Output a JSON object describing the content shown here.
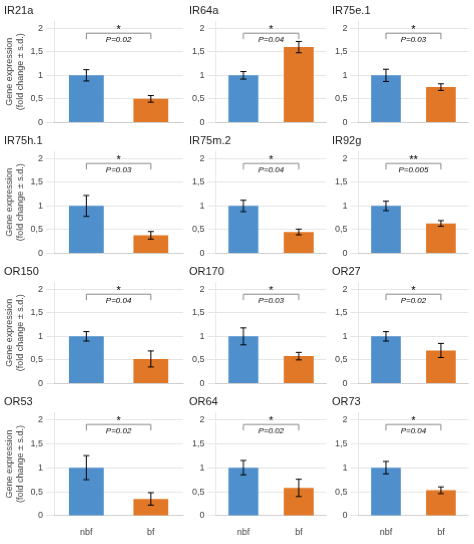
{
  "chart_data": [
    {
      "type": "bar",
      "title": "IR21a",
      "categories": [
        "nbf",
        "bf"
      ],
      "values": [
        1.0,
        0.5
      ],
      "errors": [
        0.12,
        0.07
      ],
      "colors": [
        "#4E8FCC",
        "#E07828"
      ],
      "annotations": [
        "*",
        "P=0.02"
      ],
      "ylabel": "Gene expression\n(fold change ± s.d.)",
      "ylim": [
        0,
        2.15
      ],
      "yticks": [
        0,
        {
          "value": 0.5,
          "label": "0,5"
        },
        1,
        {
          "value": 1.5,
          "label": "1,5"
        },
        2
      ],
      "grid": "y",
      "tick_labels": "y"
    },
    {
      "type": "bar",
      "title": "IR64a",
      "categories": [
        "nbf",
        "bf"
      ],
      "values": [
        1.0,
        1.6
      ],
      "errors": [
        0.08,
        0.12
      ],
      "colors": [
        "#4E8FCC",
        "#E07828"
      ],
      "annotations": [
        "*",
        "P=0.04"
      ],
      "ylim": [
        0,
        2.15
      ],
      "yticks": [
        0,
        {
          "value": 0.5,
          "label": "0,5"
        },
        1,
        {
          "value": 1.5,
          "label": "1,5"
        },
        2
      ],
      "grid": "y",
      "tick_labels": "y"
    },
    {
      "type": "bar",
      "title": "IR75e.1",
      "categories": [
        "nbf",
        "bf"
      ],
      "values": [
        1.0,
        0.75
      ],
      "errors": [
        0.13,
        0.07
      ],
      "colors": [
        "#4E8FCC",
        "#E07828"
      ],
      "annotations": [
        "*",
        "P=0.03"
      ],
      "ylim": [
        0,
        2.15
      ],
      "yticks": [
        0,
        {
          "value": 0.5,
          "label": "0,5"
        },
        1,
        {
          "value": 1.5,
          "label": "1,5"
        },
        2
      ],
      "grid": "y",
      "tick_labels": "y"
    },
    {
      "type": "bar",
      "title": "IR75h.1",
      "categories": [
        "nbf",
        "bf"
      ],
      "values": [
        1.0,
        0.38
      ],
      "errors": [
        0.22,
        0.08
      ],
      "colors": [
        "#4E8FCC",
        "#E07828"
      ],
      "annotations": [
        "*",
        "P=0.03"
      ],
      "ylabel": "Gene expression\n(fold change ± s.d.)",
      "ylim": [
        0,
        2.15
      ],
      "yticks": [
        0,
        {
          "value": 0.5,
          "label": "0,5"
        },
        1,
        {
          "value": 1.5,
          "label": "1,5"
        },
        2
      ],
      "grid": "y",
      "tick_labels": "y"
    },
    {
      "type": "bar",
      "title": "IR75m.2",
      "categories": [
        "nbf",
        "bf"
      ],
      "values": [
        1.0,
        0.45
      ],
      "errors": [
        0.12,
        0.06
      ],
      "colors": [
        "#4E8FCC",
        "#E07828"
      ],
      "annotations": [
        "*",
        "P=0.04"
      ],
      "ylim": [
        0,
        2.15
      ],
      "yticks": [
        0,
        {
          "value": 0.5,
          "label": "0,5"
        },
        1,
        {
          "value": 1.5,
          "label": "1,5"
        },
        2
      ],
      "grid": "y",
      "tick_labels": "y"
    },
    {
      "type": "bar",
      "title": "IR92g",
      "categories": [
        "nbf",
        "bf"
      ],
      "values": [
        1.0,
        0.63
      ],
      "errors": [
        0.1,
        0.06
      ],
      "colors": [
        "#4E8FCC",
        "#E07828"
      ],
      "annotations": [
        "**",
        "P=0.005"
      ],
      "ylim": [
        0,
        2.15
      ],
      "yticks": [
        0,
        {
          "value": 0.5,
          "label": "0,5"
        },
        1,
        {
          "value": 1.5,
          "label": "1,5"
        },
        2
      ],
      "grid": "y",
      "tick_labels": "y"
    },
    {
      "type": "bar",
      "title": "OR150",
      "categories": [
        "nbf",
        "bf"
      ],
      "values": [
        1.0,
        0.52
      ],
      "errors": [
        0.1,
        0.17
      ],
      "colors": [
        "#4E8FCC",
        "#E07828"
      ],
      "annotations": [
        "*",
        "P=0.04"
      ],
      "ylabel": "Gene expression\n(fold change ± s.d.)",
      "ylim": [
        0,
        2.15
      ],
      "yticks": [
        0,
        {
          "value": 0.5,
          "label": "0,5"
        },
        1,
        {
          "value": 1.5,
          "label": "1,5"
        },
        2
      ],
      "grid": "y",
      "tick_labels": "y"
    },
    {
      "type": "bar",
      "title": "OR170",
      "categories": [
        "nbf",
        "bf"
      ],
      "values": [
        1.0,
        0.58
      ],
      "errors": [
        0.18,
        0.08
      ],
      "colors": [
        "#4E8FCC",
        "#E07828"
      ],
      "annotations": [
        "*",
        "P=0.03"
      ],
      "ylim": [
        0,
        2.15
      ],
      "yticks": [
        0,
        {
          "value": 0.5,
          "label": "0,5"
        },
        1,
        {
          "value": 1.5,
          "label": "1,5"
        },
        2
      ],
      "grid": "y",
      "tick_labels": "y"
    },
    {
      "type": "bar",
      "title": "OR27",
      "categories": [
        "nbf",
        "bf"
      ],
      "values": [
        1.0,
        0.7
      ],
      "errors": [
        0.1,
        0.15
      ],
      "colors": [
        "#4E8FCC",
        "#E07828"
      ],
      "annotations": [
        "*",
        "P=0.02"
      ],
      "ylim": [
        0,
        2.15
      ],
      "yticks": [
        0,
        {
          "value": 0.5,
          "label": "0,5"
        },
        1,
        {
          "value": 1.5,
          "label": "1,5"
        },
        2
      ],
      "grid": "y",
      "tick_labels": "y"
    },
    {
      "type": "bar",
      "title": "OR53",
      "categories": [
        "nbf",
        "bf"
      ],
      "values": [
        1.0,
        0.35
      ],
      "errors": [
        0.25,
        0.13
      ],
      "colors": [
        "#4E8FCC",
        "#E07828"
      ],
      "annotations": [
        "*",
        "P=0.02"
      ],
      "ylabel": "Gene expression\n(fold change ± s.d.)",
      "ylim": [
        0,
        2.15
      ],
      "yticks": [
        0,
        {
          "value": 0.5,
          "label": "0,5"
        },
        1,
        {
          "value": 1.5,
          "label": "1,5"
        },
        2
      ],
      "grid": "y"
    },
    {
      "type": "bar",
      "title": "OR64",
      "categories": [
        "nbf",
        "bf"
      ],
      "values": [
        1.0,
        0.58
      ],
      "errors": [
        0.15,
        0.18
      ],
      "colors": [
        "#4E8FCC",
        "#E07828"
      ],
      "annotations": [
        "*",
        "P=0.02"
      ],
      "ylim": [
        0,
        2.15
      ],
      "yticks": [
        0,
        {
          "value": 0.5,
          "label": "0,5"
        },
        1,
        {
          "value": 1.5,
          "label": "1,5"
        },
        2
      ],
      "grid": "y"
    },
    {
      "type": "bar",
      "title": "OR73",
      "categories": [
        "nbf",
        "bf"
      ],
      "values": [
        1.0,
        0.53
      ],
      "errors": [
        0.13,
        0.07
      ],
      "colors": [
        "#4E8FCC",
        "#E07828"
      ],
      "annotations": [
        "*",
        "P=0.04"
      ],
      "ylim": [
        0,
        2.15
      ],
      "yticks": [
        0,
        {
          "value": 0.5,
          "label": "0,5"
        },
        1,
        {
          "value": 1.5,
          "label": "1,5"
        },
        2
      ],
      "grid": "y"
    }
  ]
}
